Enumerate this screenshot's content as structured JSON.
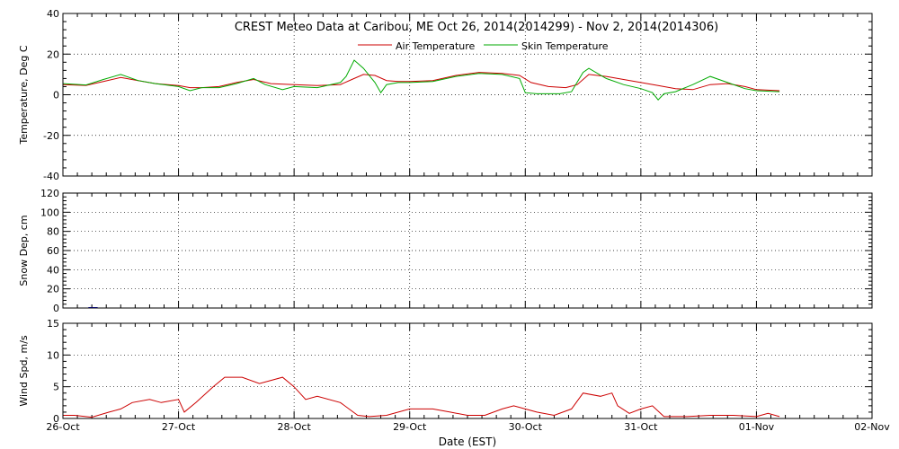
{
  "title": "CREST Meteo Data at Caribou, ME   Oct 26, 2014(2014299) - Nov  2, 2014(2014306)",
  "xlabel": "Date (EST)",
  "colors": {
    "air": "#cc0000",
    "skin": "#00aa00",
    "wind": "#cc0000",
    "snow": "#0000cc"
  },
  "chart_data": [
    {
      "type": "line",
      "ylabel": "Temperature, Deg C",
      "ylim": [
        -40,
        40
      ],
      "yticks": [
        "-40",
        "-20",
        "0",
        "20",
        "40"
      ],
      "xlim": [
        0,
        7
      ],
      "grid": true,
      "legend_position": "top-center",
      "series": [
        {
          "name": "Air Temperature",
          "color": "#cc0000",
          "x": [
            0,
            0.2,
            0.35,
            0.5,
            0.65,
            0.8,
            1.0,
            1.1,
            1.2,
            1.35,
            1.5,
            1.65,
            1.8,
            2.0,
            2.2,
            2.4,
            2.5,
            2.6,
            2.7,
            2.8,
            2.9,
            3.0,
            3.2,
            3.4,
            3.6,
            3.8,
            3.95,
            4.05,
            4.2,
            4.35,
            4.45,
            4.55,
            4.7,
            4.85,
            5.0,
            5.15,
            5.3,
            5.45,
            5.6,
            5.75,
            5.9,
            6.0,
            6.2
          ],
          "y": [
            5,
            4.6,
            6.5,
            8.5,
            7,
            5.5,
            4.5,
            3.5,
            3.5,
            4,
            6,
            7.5,
            5.5,
            5,
            4.5,
            5,
            7.5,
            10,
            9.5,
            7,
            6.5,
            6.5,
            7,
            9.5,
            11,
            10.5,
            9.5,
            6,
            4,
            3.5,
            5,
            10,
            9,
            7.5,
            6,
            4.5,
            3,
            2.5,
            5,
            5.5,
            4,
            2.5,
            2
          ]
        },
        {
          "name": "Skin Temperature",
          "color": "#00aa00",
          "x": [
            0,
            0.2,
            0.35,
            0.5,
            0.65,
            0.8,
            1.0,
            1.1,
            1.2,
            1.35,
            1.5,
            1.65,
            1.75,
            1.9,
            2.0,
            2.2,
            2.4,
            2.45,
            2.52,
            2.6,
            2.7,
            2.75,
            2.8,
            2.9,
            3.0,
            3.2,
            3.4,
            3.6,
            3.8,
            3.95,
            4.0,
            4.1,
            4.3,
            4.4,
            4.5,
            4.55,
            4.7,
            4.85,
            5.0,
            5.1,
            5.15,
            5.2,
            5.3,
            5.45,
            5.6,
            5.75,
            5.9,
            6.0,
            6.2
          ],
          "y": [
            5.5,
            4.8,
            7.5,
            10,
            7,
            5.5,
            4,
            2,
            3.5,
            3.5,
            5.5,
            8,
            5,
            2.5,
            4,
            3.5,
            6,
            9,
            17,
            13,
            6,
            1,
            5,
            6,
            6,
            6.5,
            9,
            10.5,
            10,
            8,
            1,
            0.5,
            0.5,
            1.5,
            11,
            13,
            8,
            5,
            3,
            1,
            -2.5,
            0.5,
            1.5,
            5,
            9,
            6,
            3,
            2,
            1.5
          ]
        }
      ]
    },
    {
      "type": "line",
      "ylabel": "Snow Dep, cm",
      "ylim": [
        0,
        120
      ],
      "yticks": [
        "0",
        "20",
        "40",
        "60",
        "80",
        "100",
        "120"
      ],
      "xlim": [
        0,
        7
      ],
      "grid": true,
      "series": [
        {
          "color": "#0000cc",
          "x": [
            0.22,
            0.3
          ],
          "y": [
            0.5,
            0.5
          ]
        }
      ]
    },
    {
      "type": "line",
      "ylabel": "Wind Spd, m/s",
      "ylim": [
        0,
        15
      ],
      "yticks": [
        "0",
        "5",
        "10",
        "15"
      ],
      "xlim": [
        0,
        7
      ],
      "grid": true,
      "categories": [
        "26-Oct",
        "27-Oct",
        "28-Oct",
        "29-Oct",
        "30-Oct",
        "31-Oct",
        "01-Nov",
        "02-Nov"
      ],
      "series": [
        {
          "color": "#cc0000",
          "x": [
            0,
            0.1,
            0.25,
            0.4,
            0.5,
            0.6,
            0.75,
            0.85,
            1.0,
            1.05,
            1.15,
            1.3,
            1.4,
            1.55,
            1.7,
            1.8,
            1.9,
            2.0,
            2.1,
            2.2,
            2.4,
            2.55,
            2.65,
            2.8,
            3.0,
            3.2,
            3.35,
            3.5,
            3.65,
            3.8,
            3.9,
            4.0,
            4.1,
            4.25,
            4.4,
            4.5,
            4.65,
            4.75,
            4.8,
            4.9,
            5.0,
            5.1,
            5.2,
            5.4,
            5.6,
            5.8,
            6.0,
            6.1,
            6.2
          ],
          "y": [
            0.5,
            0.5,
            0.2,
            1,
            1.5,
            2.5,
            3,
            2.5,
            3,
            1,
            2.5,
            5,
            6.5,
            6.5,
            5.5,
            6,
            6.5,
            5,
            3,
            3.5,
            2.5,
            0.5,
            0.3,
            0.5,
            1.5,
            1.5,
            1,
            0.5,
            0.5,
            1.5,
            2,
            1.5,
            1,
            0.5,
            1.5,
            4,
            3.5,
            4,
            2,
            0.8,
            1.5,
            2,
            0.3,
            0.3,
            0.5,
            0.5,
            0.3,
            0.8,
            0.3
          ]
        }
      ]
    }
  ]
}
